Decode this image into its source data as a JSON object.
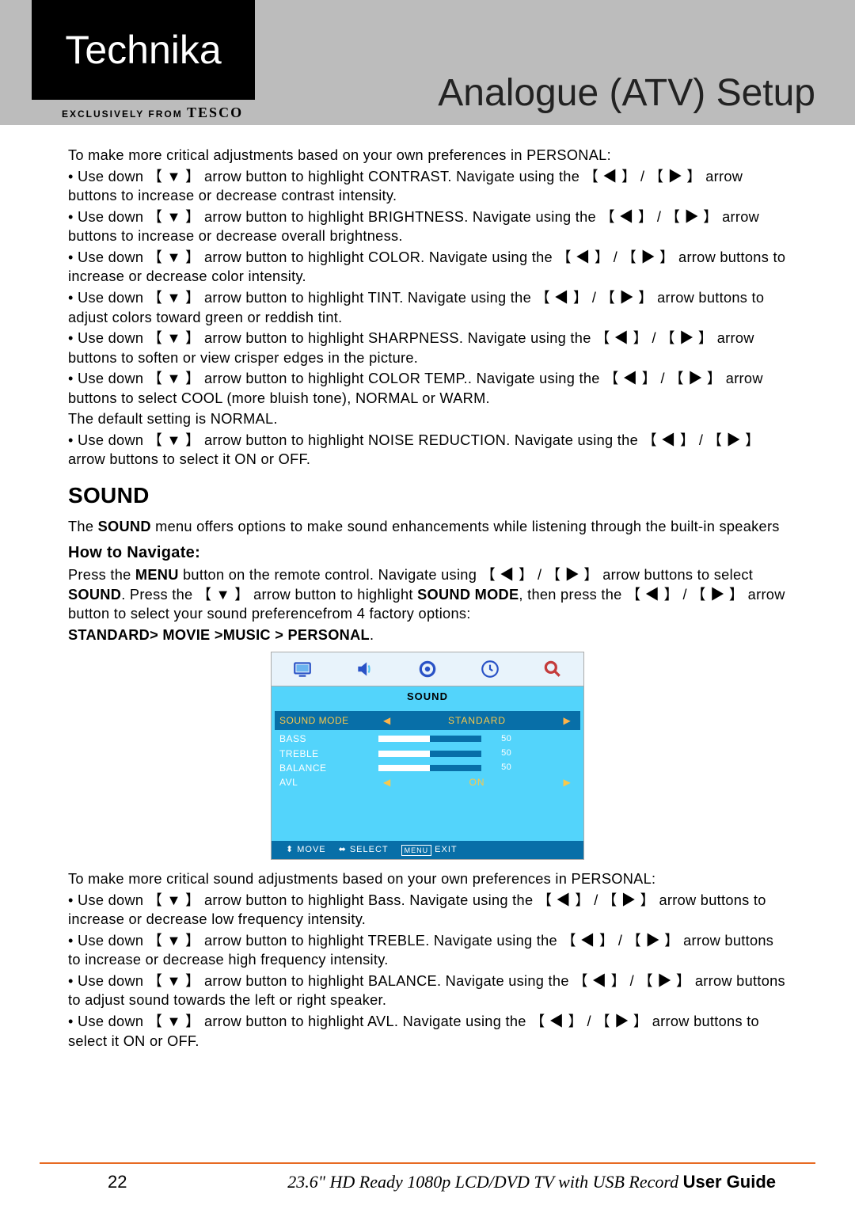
{
  "header": {
    "brand": "Technika",
    "exclusively_prefix": "EXCLUSIVELY FROM",
    "exclusively_brand": "TESCO",
    "page_title": "Analogue (ATV) Setup"
  },
  "glyphs": {
    "down": "【 ▼ 】",
    "left": "【 ◀ 】",
    "right": "【 ▶ 】",
    "sep": " / "
  },
  "intro_personal": "To make more critical adjustments based on your own preferences in PERSONAL:",
  "picture_bullets": [
    {
      "pre": "• Use down ",
      "mid1": " arrow button to highlight CONTRAST. Navigate using the ",
      "mid2": " arrow buttons to increase or  decrease contrast intensity."
    },
    {
      "pre": "• Use down ",
      "mid1": " arrow button to highlight BRIGHTNESS. Navigate using the ",
      "mid2": " arrow buttons to increase or  decrease overall brightness."
    },
    {
      "pre": "• Use down ",
      "mid1": " arrow button to highlight COLOR. Navigate using the ",
      "mid2": "  arrow buttons to increase or decrease color intensity."
    },
    {
      "pre": "•  Use down ",
      "mid1": " arrow button to highlight TINT. Navigate using the ",
      "mid2": " arrow buttons to adjust colors toward  green or reddish tint."
    },
    {
      "pre": "• Use down ",
      "mid1": " arrow button to highlight SHARPNESS. Navigate using the ",
      "mid2": " arrow buttons to soften or view crisper edges in the picture."
    },
    {
      "pre": "• Use down ",
      "mid1": " arrow button to highlight COLOR TEMP.. Navigate using the ",
      "mid2": " arrow buttons to select COOL  (more bluish tone), NORMAL or WARM.",
      "extra": "The default setting is NORMAL."
    },
    {
      "pre": "• Use down ",
      "mid1": " arrow button to highlight NOISE REDUCTION. Navigate using the ",
      "mid2": "  arrow buttons to select  it ON or OFF.",
      "lr_inline_after_the": true
    }
  ],
  "sound": {
    "heading": "SOUND",
    "intro_a": "The ",
    "intro_bold": "SOUND",
    "intro_b": " menu offers options to make sound enhancements while listening through the built-in speakers",
    "howto_heading": "How to Navigate:",
    "nav_a": "Press the ",
    "nav_menu": "MENU",
    "nav_b": " button on the remote control. Navigate using ",
    "nav_c": " arrow buttons to select ",
    "nav_sound": "SOUND",
    "nav_d": ". Press the  ",
    "nav_e": " arrow button to highlight ",
    "nav_mode": "SOUND MODE",
    "nav_f": ", then press the  ",
    "nav_g": "  arrow button to select your sound preferencefrom 4 factory options:",
    "options": "STANDARD> MOVIE >MUSIC  > PERSONAL",
    "options_suffix": "."
  },
  "osd": {
    "tabs_colors": {
      "tv": "#2952c6",
      "sound": "#2952c6",
      "gear": "#2952c6",
      "clock": "#2952c6",
      "search": "#c43b3b"
    },
    "title": "SOUND",
    "bg": "#53d4fb",
    "active_bg": "#086fa8",
    "accent": "#f9c84a",
    "rows": [
      {
        "label": "SOUND MODE",
        "type": "select",
        "value": "STANDARD",
        "active": true
      },
      {
        "label": "BASS",
        "type": "slider",
        "value": 50,
        "fill": 50
      },
      {
        "label": "TREBLE",
        "type": "slider",
        "value": 50,
        "fill": 50
      },
      {
        "label": "BALANCE",
        "type": "slider",
        "value": 50,
        "fill": 50
      },
      {
        "label": "AVL",
        "type": "select",
        "value": "ON",
        "active": false
      }
    ],
    "footer": {
      "move": "MOVE",
      "select": "SELECT",
      "menu": "MENU",
      "exit": "EXIT"
    }
  },
  "sound_personal_intro": "To make more critical sound adjustments based on your own preferences in PERSONAL:",
  "sound_bullets": [
    {
      "pre": "• Use down ",
      "mid1": " arrow button to highlight Bass. Navigate using the ",
      "mid2": " arrow buttons to increase or decrease low frequency intensity."
    },
    {
      "pre": "• Use down ",
      "mid1": " arrow button to highlight TREBLE. Navigate using the ",
      "mid2": " arrow buttons to increase or decrease high frequency intensity."
    },
    {
      "pre": "• Use down ",
      "mid1": " arrow button to highlight BALANCE. Navigate using the ",
      "mid2": " arrow buttons to adjust sound towards the left or right speaker."
    },
    {
      "pre": "• Use down ",
      "mid1": " arrow button to highlight AVL. Navigate using the ",
      "mid2": " arrow buttons to select it ON or OFF."
    }
  ],
  "footer": {
    "page": "22",
    "text_a": "23.6\" HD Ready 1080p LCD/DVD TV with USB Record ",
    "text_b": "User Guide"
  }
}
